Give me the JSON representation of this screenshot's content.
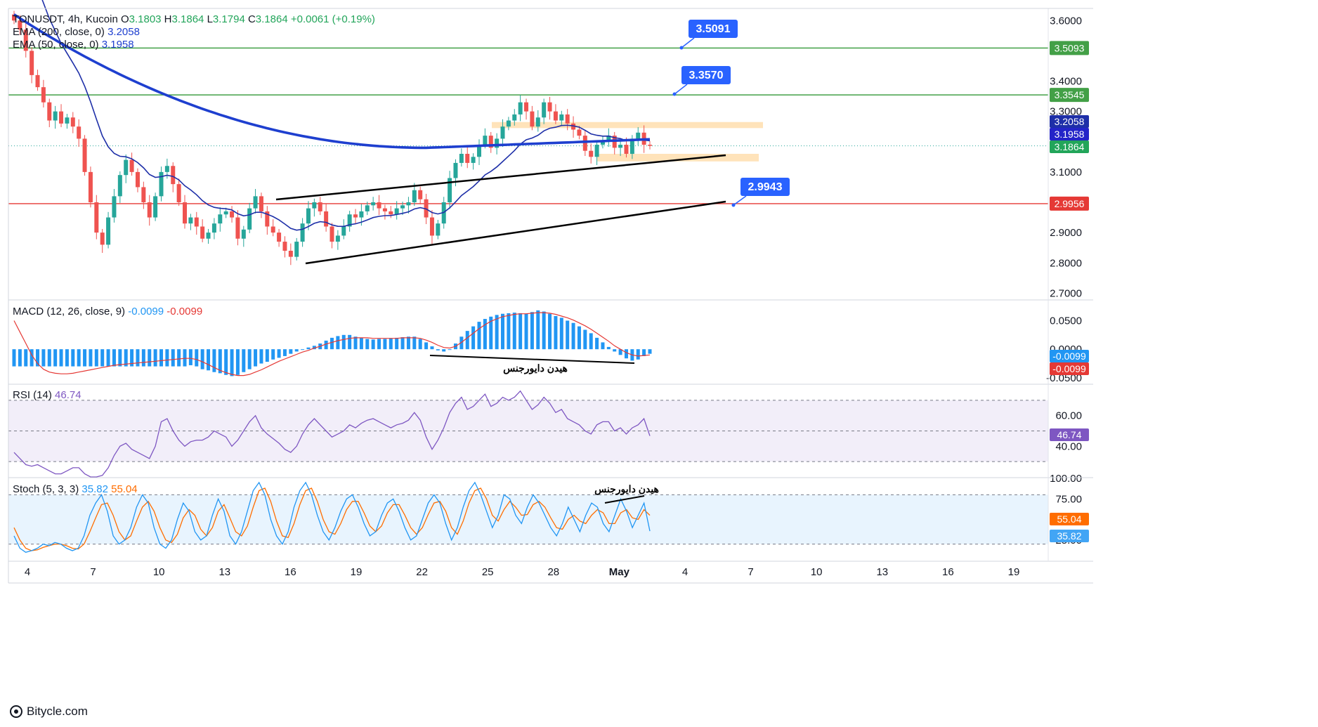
{
  "footer": {
    "site": "Bitycle.com",
    "logo_icon": "bitycle-logo-icon"
  },
  "chart_data": [
    {
      "type": "candlestick",
      "symbol_line": "TONUSDT, 4h, Kucoin",
      "ohlc_readout": {
        "O": "3.1803",
        "H": "3.1864",
        "L": "3.1794",
        "C": "3.1864",
        "change": "+0.0061 (+0.19%)"
      },
      "indicators": [
        {
          "label": "EMA (200, close, 0)",
          "value": "3.2058",
          "color": "#1e3fcf"
        },
        {
          "label": "EMA (50, close, 0)",
          "value": "3.1958",
          "color": "#1e3fcf"
        }
      ],
      "price_axis_ticks": [
        "3.6000",
        "3.4000",
        "3.3000",
        "3.1000",
        "2.9000",
        "2.8000",
        "2.7000"
      ],
      "ylim": [
        2.68,
        3.64
      ],
      "x_tick_labels": [
        "4",
        "7",
        "10",
        "13",
        "16",
        "19",
        "22",
        "25",
        "28",
        "May",
        "4",
        "7",
        "10",
        "13",
        "16",
        "19"
      ],
      "horizontal_levels": [
        {
          "value": 3.5093,
          "label": "3.5093",
          "color": "#43a047"
        },
        {
          "value": 3.3545,
          "label": "3.3545",
          "color": "#43a047"
        },
        {
          "value": 2.9956,
          "label": "2.9956",
          "color": "#e53935"
        }
      ],
      "price_badges": [
        {
          "value": 3.2058,
          "label": "3.2058",
          "color": "#1e2fa8"
        },
        {
          "value": 3.1958,
          "label": "3.1958",
          "color": "#2424c8"
        },
        {
          "value": 3.1864,
          "label": "3.1864",
          "color": "#22a55a"
        }
      ],
      "callouts": [
        "3.5091",
        "3.3570",
        "2.9943"
      ],
      "zones": [
        {
          "from": 3.245,
          "to": 3.265,
          "color": "#ffe0b2"
        },
        {
          "from": 3.135,
          "to": 3.16,
          "color": "#ffe0b2"
        }
      ],
      "closes": [
        3.6,
        3.57,
        3.5,
        3.42,
        3.38,
        3.33,
        3.27,
        3.3,
        3.26,
        3.28,
        3.25,
        3.21,
        3.1,
        3.0,
        2.9,
        2.86,
        2.95,
        3.02,
        3.09,
        3.14,
        3.1,
        3.05,
        3.0,
        2.95,
        3.02,
        3.1,
        3.12,
        3.06,
        3.0,
        2.93,
        2.95,
        2.92,
        2.88,
        2.9,
        2.93,
        2.96,
        2.97,
        2.95,
        2.88,
        2.91,
        2.98,
        3.02,
        2.97,
        2.92,
        2.9,
        2.87,
        2.84,
        2.82,
        2.87,
        2.93,
        2.98,
        3.0,
        2.97,
        2.92,
        2.87,
        2.89,
        2.92,
        2.96,
        2.95,
        2.97,
        2.99,
        3.0,
        2.98,
        2.97,
        2.96,
        2.98,
        2.99,
        3.0,
        3.04,
        3.01,
        2.95,
        2.89,
        2.93,
        3.0,
        3.08,
        3.13,
        3.16,
        3.13,
        3.15,
        3.19,
        3.22,
        3.18,
        3.21,
        3.25,
        3.27,
        3.29,
        3.33,
        3.3,
        3.25,
        3.28,
        3.33,
        3.3,
        3.27,
        3.29,
        3.26,
        3.24,
        3.22,
        3.17,
        3.15,
        3.19,
        3.2,
        3.22,
        3.18,
        3.19,
        3.16,
        3.21,
        3.23,
        3.19,
        3.1864
      ],
      "ema200": "3.2058",
      "ema50": "3.1958"
    },
    {
      "type": "bar",
      "title": "MACD (12, 26, close, 9)",
      "values_readout": [
        "-0.0099",
        "-0.0099"
      ],
      "axis_ticks": [
        "0.0500",
        "0.0000",
        "-0.0500"
      ],
      "ylim": [
        -0.06,
        0.085
      ],
      "badges": [
        {
          "label": "-0.0099",
          "color": "#2196f3"
        },
        {
          "label": "-0.0099",
          "color": "#e53935"
        }
      ],
      "annotation": "هیدن دایورجنس",
      "histogram": [
        -0.03,
        -0.03,
        -0.03,
        -0.03,
        -0.03,
        -0.03,
        -0.03,
        -0.03,
        -0.03,
        -0.03,
        -0.03,
        -0.03,
        -0.03,
        -0.03,
        -0.03,
        -0.03,
        -0.03,
        -0.03,
        -0.03,
        -0.03,
        -0.03,
        -0.03,
        -0.03,
        -0.03,
        -0.03,
        -0.03,
        -0.03,
        -0.03,
        -0.03,
        -0.03,
        -0.028,
        -0.03,
        -0.035,
        -0.037,
        -0.04,
        -0.042,
        -0.045,
        -0.047,
        -0.045,
        -0.04,
        -0.035,
        -0.03,
        -0.025,
        -0.022,
        -0.018,
        -0.015,
        -0.012,
        -0.008,
        -0.004,
        0.0,
        0.003,
        0.006,
        0.01,
        0.015,
        0.02,
        0.023,
        0.025,
        0.025,
        0.022,
        0.02,
        0.018,
        0.017,
        0.018,
        0.018,
        0.019,
        0.02,
        0.021,
        0.022,
        0.022,
        0.018,
        0.012,
        0.005,
        -0.002,
        -0.004,
        0.0,
        0.01,
        0.022,
        0.032,
        0.04,
        0.048,
        0.053,
        0.057,
        0.06,
        0.062,
        0.063,
        0.064,
        0.063,
        0.062,
        0.065,
        0.068,
        0.066,
        0.062,
        0.058,
        0.055,
        0.05,
        0.046,
        0.04,
        0.034,
        0.028,
        0.02,
        0.012,
        0.004,
        -0.004,
        -0.01,
        -0.016,
        -0.02,
        -0.018,
        -0.012,
        -0.008
      ],
      "signal": [
        0.05,
        0.03,
        0.01,
        -0.01,
        -0.025,
        -0.035,
        -0.04,
        -0.042,
        -0.043,
        -0.043,
        -0.042,
        -0.04,
        -0.038,
        -0.036,
        -0.034,
        -0.032,
        -0.03,
        -0.028,
        -0.027,
        -0.026,
        -0.025,
        -0.024,
        -0.023,
        -0.022,
        -0.021,
        -0.02,
        -0.019,
        -0.018,
        -0.017,
        -0.016,
        -0.016,
        -0.018,
        -0.022,
        -0.027,
        -0.032,
        -0.037,
        -0.041,
        -0.044,
        -0.046,
        -0.046,
        -0.044,
        -0.04,
        -0.036,
        -0.031,
        -0.026,
        -0.021,
        -0.017,
        -0.013,
        -0.009,
        -0.005,
        -0.002,
        0.002,
        0.005,
        0.009,
        0.012,
        0.015,
        0.017,
        0.019,
        0.02,
        0.02,
        0.02,
        0.019,
        0.019,
        0.019,
        0.019,
        0.019,
        0.02,
        0.02,
        0.02,
        0.019,
        0.016,
        0.012,
        0.007,
        0.003,
        0.002,
        0.005,
        0.012,
        0.02,
        0.028,
        0.036,
        0.043,
        0.049,
        0.053,
        0.057,
        0.059,
        0.061,
        0.062,
        0.062,
        0.063,
        0.064,
        0.064,
        0.063,
        0.061,
        0.058,
        0.055,
        0.051,
        0.046,
        0.041,
        0.035,
        0.028,
        0.021,
        0.014,
        0.006,
        0.0,
        -0.006,
        -0.01,
        -0.012,
        -0.011,
        -0.01
      ]
    },
    {
      "type": "line",
      "title": "RSI (14)",
      "value_readout": "46.74",
      "axis_ticks": [
        "60.00",
        "40.00"
      ],
      "ylim": [
        20,
        80
      ],
      "band": [
        30,
        70
      ],
      "badge": {
        "label": "46.74",
        "color": "#7e57c2"
      },
      "values": [
        36,
        32,
        28,
        27,
        28,
        26,
        24,
        22,
        22,
        24,
        26,
        26,
        22,
        20,
        20,
        21,
        26,
        34,
        40,
        42,
        38,
        36,
        34,
        32,
        40,
        56,
        58,
        50,
        44,
        40,
        43,
        44,
        44,
        46,
        50,
        48,
        46,
        40,
        44,
        50,
        56,
        60,
        52,
        48,
        45,
        42,
        38,
        36,
        40,
        48,
        54,
        58,
        54,
        50,
        46,
        48,
        50,
        54,
        52,
        55,
        57,
        58,
        56,
        54,
        52,
        54,
        55,
        57,
        62,
        57,
        46,
        38,
        44,
        52,
        62,
        68,
        72,
        64,
        66,
        70,
        74,
        66,
        68,
        72,
        70,
        72,
        76,
        70,
        64,
        67,
        72,
        68,
        62,
        64,
        58,
        56,
        54,
        50,
        48,
        54,
        56,
        56,
        50,
        52,
        48,
        52,
        54,
        58,
        46.74
      ]
    },
    {
      "type": "line",
      "title": "Stoch (5, 3, 3)",
      "values_readout": [
        "35.82",
        "55.04"
      ],
      "axis_ticks": [
        "100.00",
        "75.00",
        "25.00"
      ],
      "ylim": [
        0,
        100
      ],
      "band": [
        20,
        80
      ],
      "badges": [
        {
          "label": "55.04",
          "color": "#ff6d00"
        },
        {
          "label": "35.82",
          "color": "#42a5f5"
        }
      ],
      "annotation": "هیدن دایورجنس",
      "k": [
        30,
        15,
        10,
        12,
        15,
        20,
        18,
        22,
        20,
        15,
        12,
        15,
        30,
        55,
        70,
        80,
        60,
        30,
        20,
        25,
        40,
        65,
        80,
        70,
        40,
        20,
        15,
        25,
        50,
        70,
        60,
        35,
        25,
        30,
        55,
        75,
        60,
        30,
        20,
        35,
        60,
        85,
        95,
        80,
        50,
        30,
        20,
        35,
        65,
        85,
        95,
        80,
        55,
        35,
        25,
        40,
        60,
        75,
        80,
        65,
        45,
        30,
        35,
        55,
        70,
        75,
        60,
        40,
        25,
        30,
        50,
        70,
        80,
        70,
        45,
        25,
        40,
        65,
        85,
        95,
        80,
        60,
        40,
        55,
        80,
        75,
        55,
        45,
        65,
        80,
        70,
        55,
        40,
        30,
        45,
        65,
        50,
        35,
        55,
        70,
        65,
        45,
        35,
        55,
        75,
        60,
        40,
        55,
        70,
        35.82
      ],
      "d": [
        40,
        25,
        15,
        12,
        13,
        16,
        18,
        20,
        20,
        18,
        15,
        14,
        20,
        35,
        52,
        68,
        70,
        55,
        35,
        25,
        30,
        48,
        65,
        72,
        60,
        40,
        25,
        22,
        32,
        52,
        62,
        55,
        38,
        30,
        40,
        60,
        68,
        52,
        35,
        30,
        42,
        65,
        85,
        88,
        72,
        48,
        30,
        28,
        45,
        68,
        85,
        88,
        72,
        50,
        35,
        32,
        45,
        62,
        72,
        72,
        58,
        42,
        35,
        42,
        58,
        68,
        68,
        55,
        40,
        32,
        40,
        56,
        70,
        72,
        60,
        40,
        32,
        48,
        70,
        85,
        88,
        75,
        55,
        48,
        62,
        72,
        65,
        55,
        56,
        68,
        72,
        65,
        52,
        40,
        38,
        50,
        55,
        48,
        45,
        55,
        62,
        58,
        45,
        45,
        58,
        62,
        52,
        50,
        62,
        55.04
      ]
    }
  ]
}
